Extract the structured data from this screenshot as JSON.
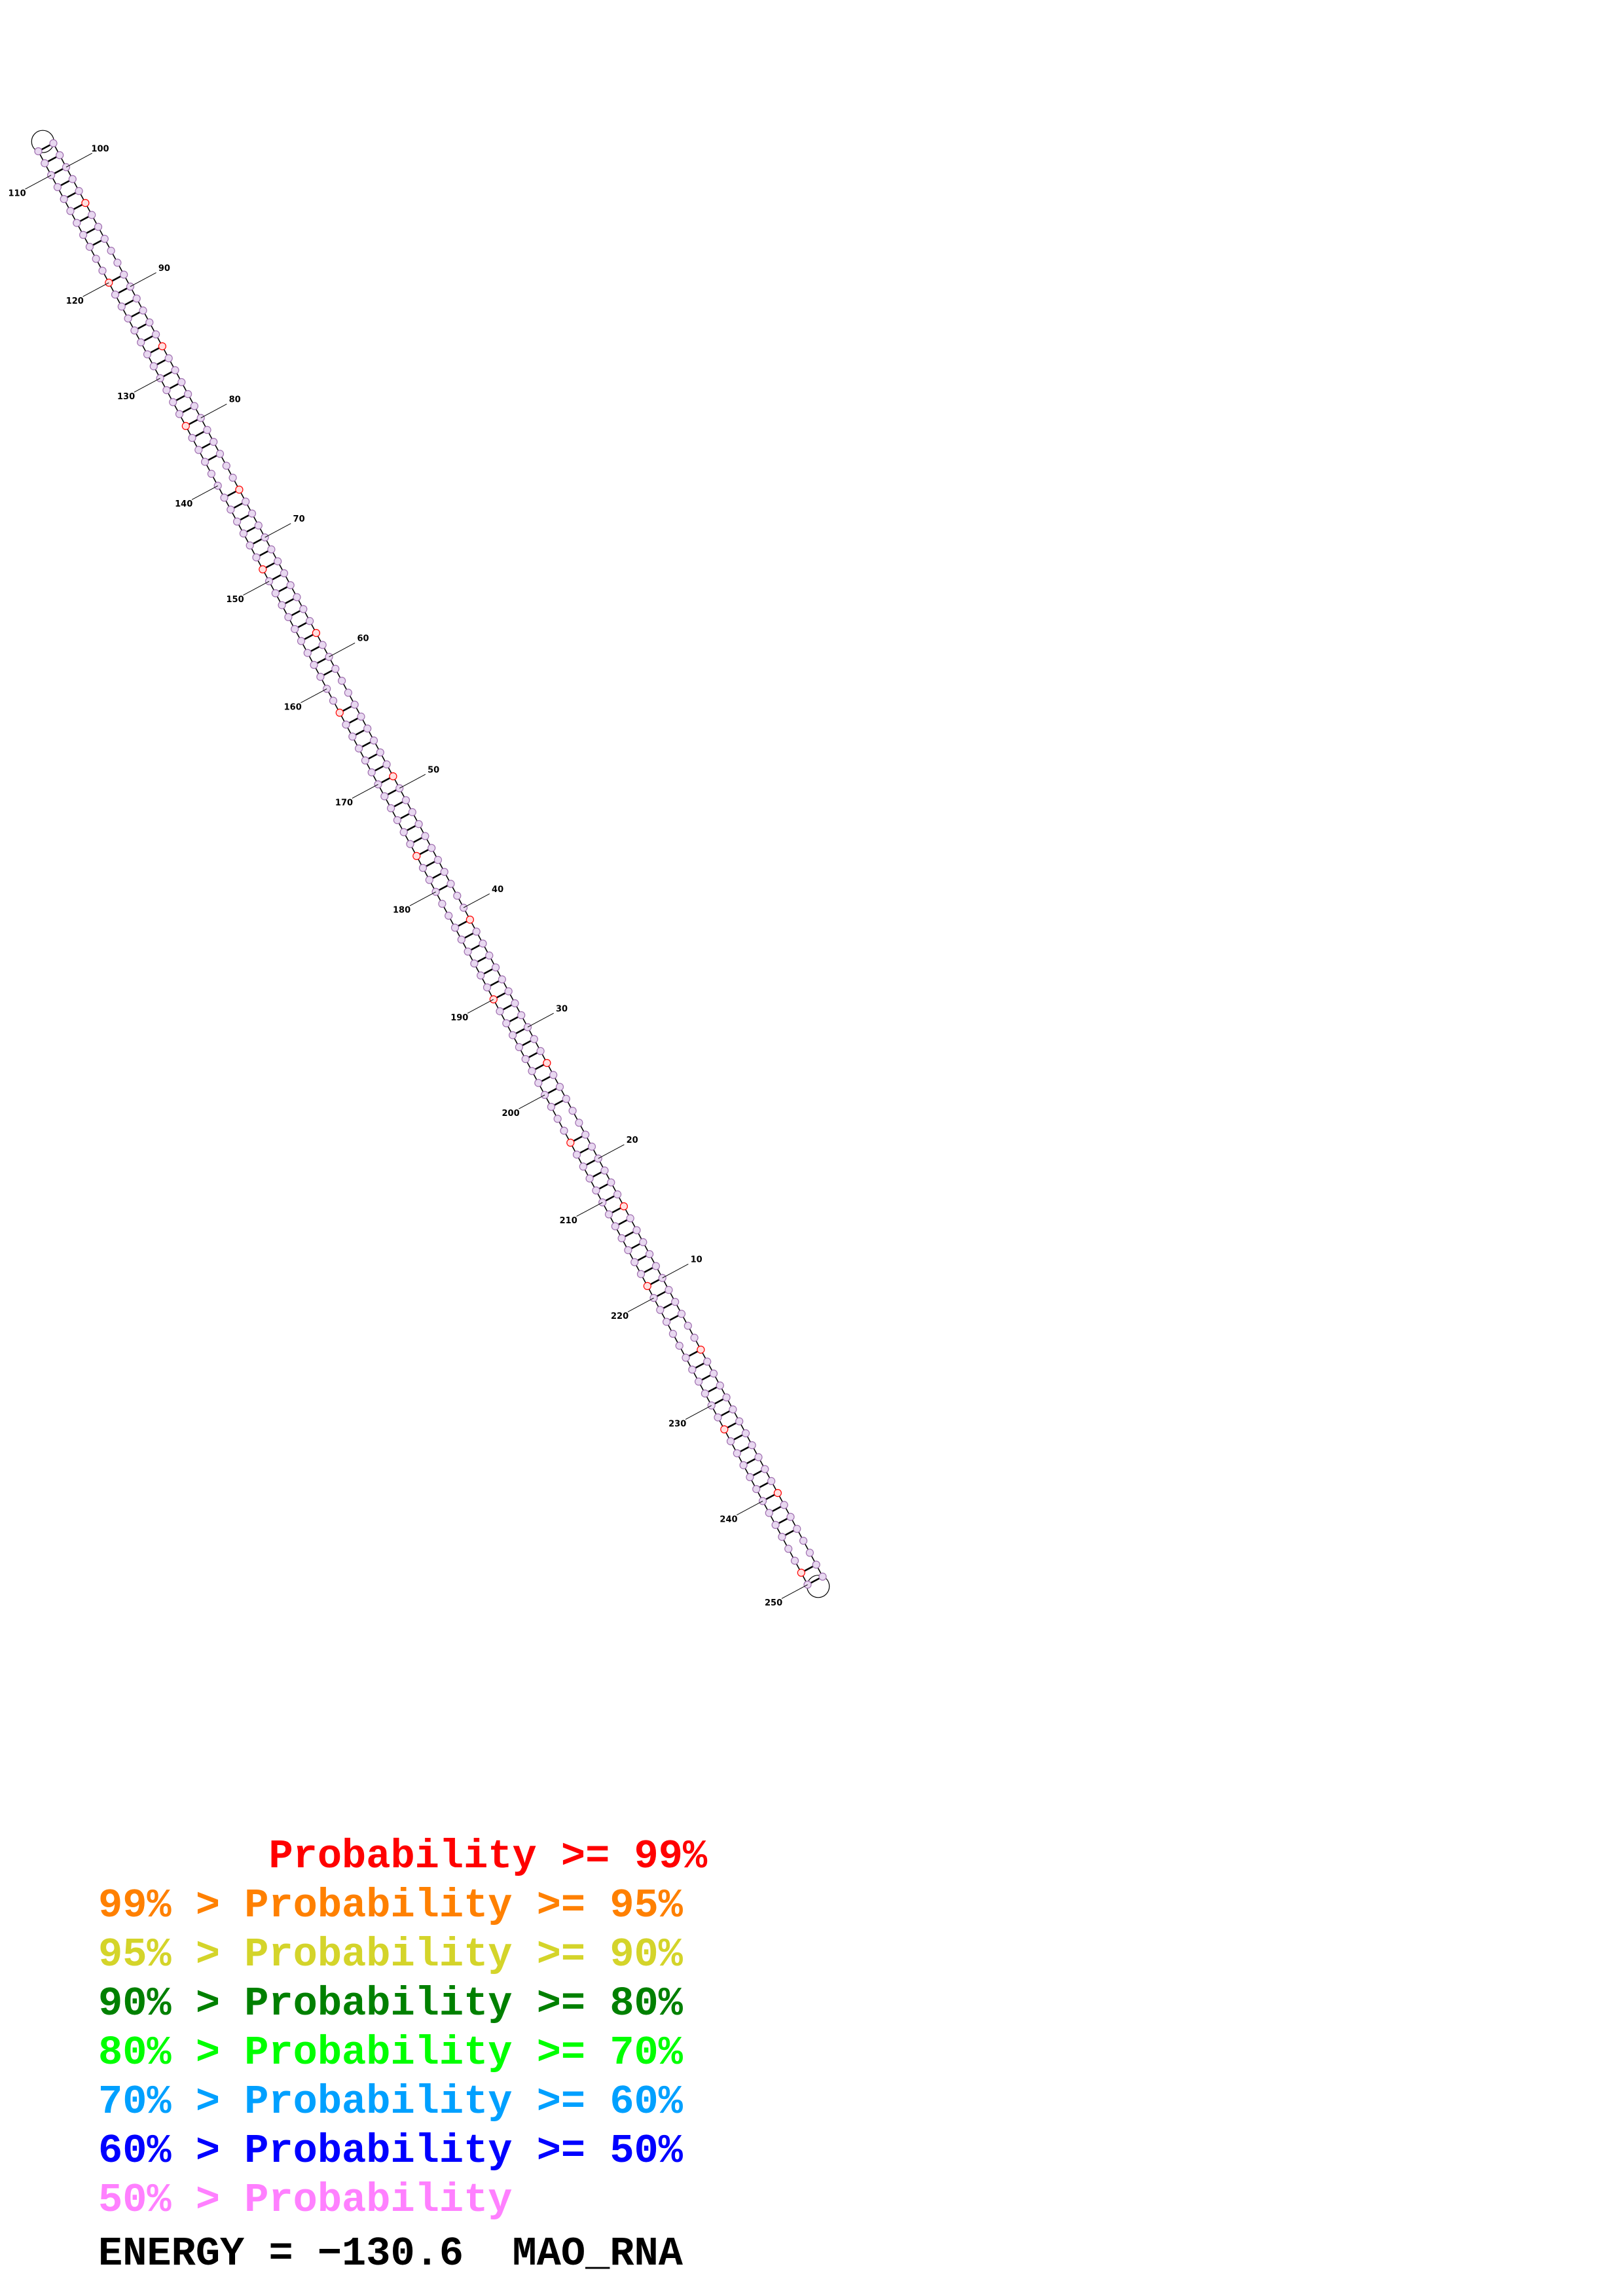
{
  "structure": {
    "name": "MAO_RNA",
    "length": 254,
    "numbering_labels": [
      "10",
      "20",
      "30",
      "40",
      "50",
      "60",
      "70",
      "80",
      "90",
      "100",
      "110",
      "120",
      "130",
      "140",
      "150",
      "160",
      "170",
      "180",
      "190",
      "200",
      "210",
      "220",
      "230",
      "240",
      "250"
    ]
  },
  "legend": [
    {
      "text": "       Probability >= 99%",
      "color": "#ff0000"
    },
    {
      "text": "99% > Probability >= 95%",
      "color": "#ff8000"
    },
    {
      "text": "95% > Probability >= 90%",
      "color": "#d4d42a"
    },
    {
      "text": "90% > Probability >= 80%",
      "color": "#008000"
    },
    {
      "text": "80% > Probability >= 70%",
      "color": "#00ff00"
    },
    {
      "text": "70% > Probability >= 60%",
      "color": "#00a0ff"
    },
    {
      "text": "60% > Probability >= 50%",
      "color": "#0000ff"
    },
    {
      "text": "50% > Probability",
      "color": "#ff80ff"
    }
  ],
  "footer": {
    "energy_text": "ENERGY = −130.6  MAO_RNA"
  },
  "colors": {
    "base_fill": "#e8d8f0",
    "base_stroke": "#a070b0",
    "highlight_base": "#ff0000",
    "backbone": "#000000"
  }
}
